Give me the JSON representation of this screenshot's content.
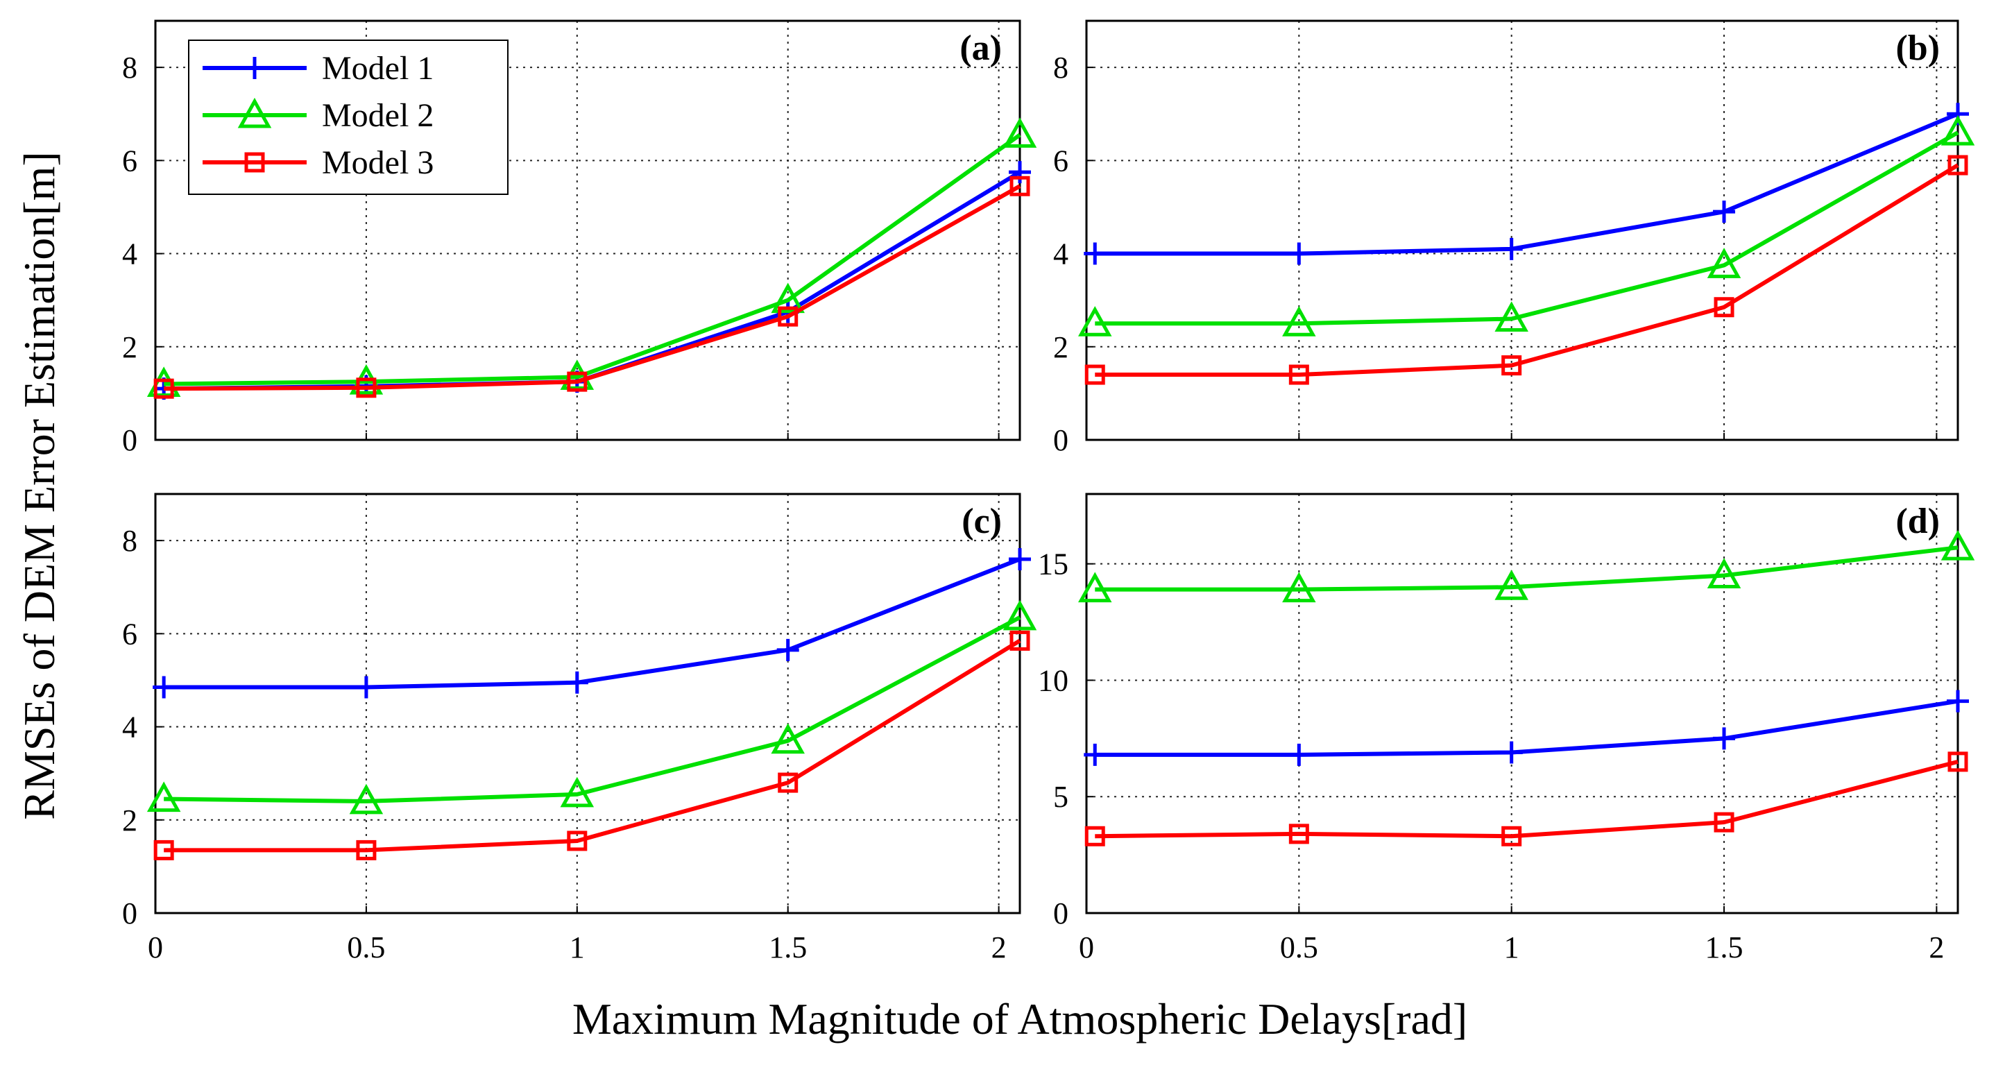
{
  "chart_data": {
    "type": "line",
    "figure_xlabel": "Maximum Magnitude of Atmospheric Delays[rad]",
    "figure_ylabel": "RMSEs of DEM Error Estimation[m]",
    "legend": {
      "placement": "top-left of panel (a)",
      "entries": [
        {
          "name": "Model 1",
          "color": "#0000ff",
          "marker": "plus"
        },
        {
          "name": "Model 2",
          "color": "#00e000",
          "marker": "triangle"
        },
        {
          "name": "Model 3",
          "color": "#ff0000",
          "marker": "square"
        }
      ]
    },
    "x": [
      0.02,
      0.5,
      1.0,
      1.5,
      2.05
    ],
    "xticks": [
      0,
      0.5,
      1,
      1.5,
      2
    ],
    "xtick_labels": [
      "0",
      "0.5",
      "1",
      "1.5",
      "2"
    ],
    "xlim": [
      0,
      2.05
    ],
    "grid": true,
    "panels": [
      {
        "label": "(a)",
        "ylim": [
          0,
          9
        ],
        "yticks": [
          0,
          2,
          4,
          6,
          8
        ],
        "ytick_labels": [
          "0",
          "2",
          "4",
          "6",
          "8"
        ],
        "series": [
          {
            "name": "Model 1",
            "values": [
              1.1,
              1.15,
              1.25,
              2.75,
              5.75
            ]
          },
          {
            "name": "Model 2",
            "values": [
              1.2,
              1.25,
              1.35,
              3.0,
              6.55
            ]
          },
          {
            "name": "Model 3",
            "values": [
              1.1,
              1.12,
              1.25,
              2.65,
              5.45
            ]
          }
        ]
      },
      {
        "label": "(b)",
        "ylim": [
          0,
          9
        ],
        "yticks": [
          0,
          2,
          4,
          6,
          8
        ],
        "ytick_labels": [
          "0",
          "2",
          "4",
          "6",
          "8"
        ],
        "series": [
          {
            "name": "Model 1",
            "values": [
              4.0,
              4.0,
              4.1,
              4.9,
              7.0
            ]
          },
          {
            "name": "Model 2",
            "values": [
              2.5,
              2.5,
              2.6,
              3.75,
              6.6
            ]
          },
          {
            "name": "Model 3",
            "values": [
              1.4,
              1.4,
              1.6,
              2.85,
              5.9
            ]
          }
        ]
      },
      {
        "label": "(c)",
        "ylim": [
          0,
          9
        ],
        "yticks": [
          0,
          2,
          4,
          6,
          8
        ],
        "ytick_labels": [
          "0",
          "2",
          "4",
          "6",
          "8"
        ],
        "series": [
          {
            "name": "Model 1",
            "values": [
              4.85,
              4.85,
              4.95,
              5.65,
              7.6
            ]
          },
          {
            "name": "Model 2",
            "values": [
              2.45,
              2.4,
              2.55,
              3.7,
              6.35
            ]
          },
          {
            "name": "Model 3",
            "values": [
              1.35,
              1.35,
              1.55,
              2.8,
              5.85
            ]
          }
        ]
      },
      {
        "label": "(d)",
        "ylim": [
          0,
          18
        ],
        "yticks": [
          0,
          5,
          10,
          15
        ],
        "ytick_labels": [
          "0",
          "5",
          "10",
          "15"
        ],
        "series": [
          {
            "name": "Model 1",
            "values": [
              6.8,
              6.8,
              6.9,
              7.5,
              9.1
            ]
          },
          {
            "name": "Model 2",
            "values": [
              13.9,
              13.9,
              14.0,
              14.5,
              15.7
            ]
          },
          {
            "name": "Model 3",
            "values": [
              3.3,
              3.4,
              3.3,
              3.9,
              6.5
            ]
          }
        ]
      }
    ]
  }
}
